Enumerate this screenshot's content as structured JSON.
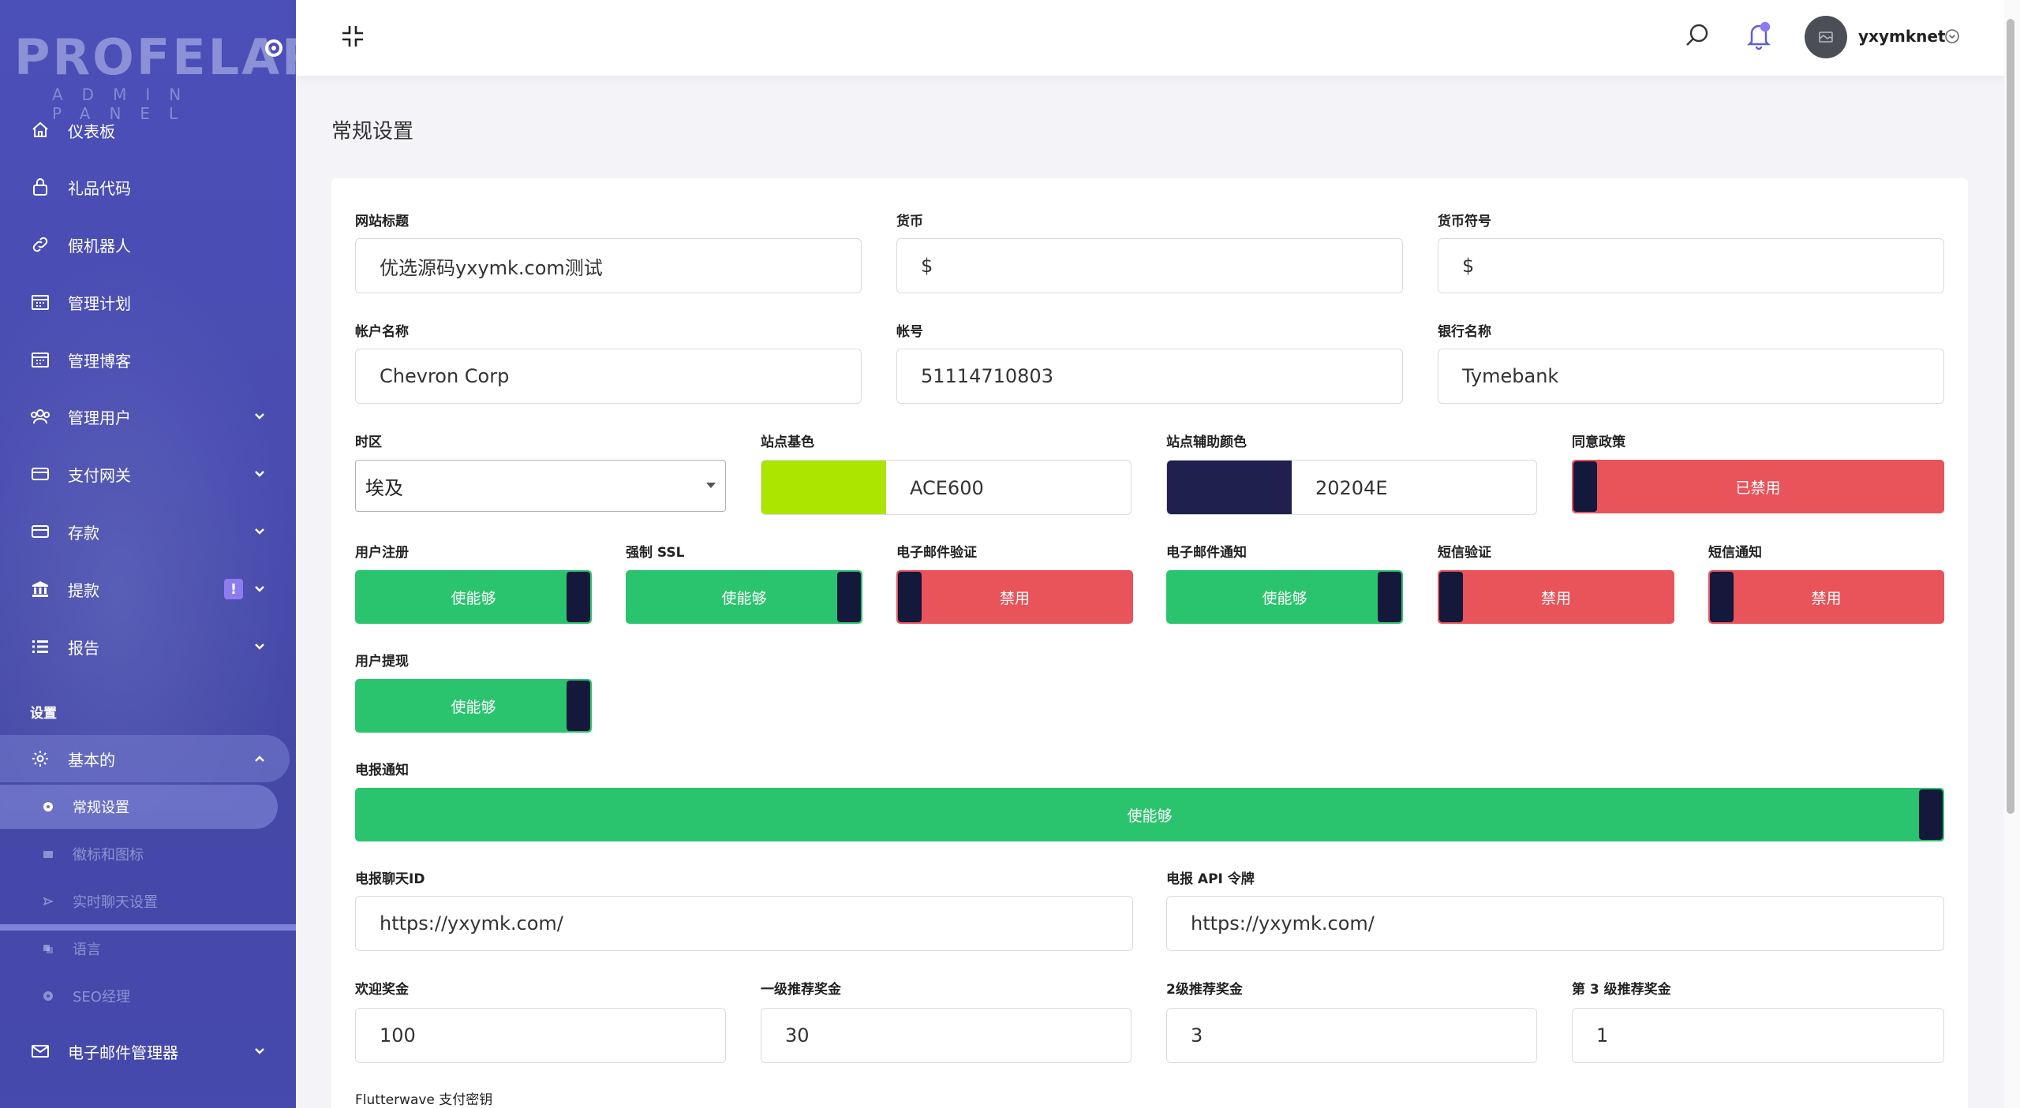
{
  "sidebar": {
    "logo_main": "PROFELAR",
    "logo_sub": "ADMIN PANEL",
    "items": [
      {
        "label": "仪表板",
        "icon": "home-icon"
      },
      {
        "label": "礼品代码",
        "icon": "lock-icon"
      },
      {
        "label": "假机器人",
        "icon": "link-icon"
      },
      {
        "label": "管理计划",
        "icon": "calendar-icon"
      },
      {
        "label": "管理博客",
        "icon": "calendar-icon"
      },
      {
        "label": "管理用户",
        "icon": "users-icon"
      },
      {
        "label": "支付网关",
        "icon": "card-icon"
      },
      {
        "label": "存款",
        "icon": "card-icon"
      },
      {
        "label": "提款",
        "icon": "bank-icon",
        "badge": "!"
      },
      {
        "label": "报告",
        "icon": "list-icon"
      }
    ],
    "section_label": "设置",
    "settings_parent": "基本的",
    "settings_children": [
      {
        "label": "常规设置",
        "active": true
      },
      {
        "label": "徽标和图标",
        "active": false
      },
      {
        "label": "实时聊天设置",
        "active": false
      },
      {
        "label": "语言",
        "active": false
      },
      {
        "label": "SEO经理",
        "active": false
      }
    ],
    "email_manager": "电子邮件管理器"
  },
  "topbar": {
    "username": "yxymknet"
  },
  "page": {
    "title": "常规设置"
  },
  "form": {
    "site_title": {
      "label": "网站标题",
      "value": "优选源码yxymk.com测试"
    },
    "currency": {
      "label": "货币",
      "value": "$"
    },
    "currency_symbol": {
      "label": "货币符号",
      "value": "$"
    },
    "account_name": {
      "label": "帐户名称",
      "value": "Chevron Corp"
    },
    "account_number": {
      "label": "帐号",
      "value": "51114710803"
    },
    "bank_name": {
      "label": "银行名称",
      "value": "Tymebank"
    },
    "timezone": {
      "label": "时区",
      "value": "埃及"
    },
    "base_color": {
      "label": "站点基色",
      "value": "ACE600",
      "swatch": "#ACE600"
    },
    "secondary_color": {
      "label": "站点辅助颜色",
      "value": "20204E",
      "swatch": "#20204E"
    },
    "agree_policy": {
      "label": "同意政策",
      "state": "已禁用"
    },
    "user_registration": {
      "label": "用户注册",
      "state": "使能够"
    },
    "force_ssl": {
      "label": "强制 SSL",
      "state": "使能够"
    },
    "email_verification": {
      "label": "电子邮件验证",
      "state": "禁用"
    },
    "email_notification": {
      "label": "电子邮件通知",
      "state": "使能够"
    },
    "sms_verification": {
      "label": "短信验证",
      "state": "禁用"
    },
    "sms_notification": {
      "label": "短信通知",
      "state": "禁用"
    },
    "user_withdrawal": {
      "label": "用户提现",
      "state": "使能够"
    },
    "telegram_notification": {
      "label": "电报通知",
      "state": "使能够"
    },
    "telegram_chat_id": {
      "label": "电报聊天ID",
      "value": "https://yxymk.com/"
    },
    "telegram_api_token": {
      "label": "电报 API 令牌",
      "value": "https://yxymk.com/"
    },
    "welcome_bonus": {
      "label": "欢迎奖金",
      "value": "100"
    },
    "ref_level1": {
      "label": "一级推荐奖金",
      "value": "30"
    },
    "ref_level2": {
      "label": "2级推荐奖金",
      "value": "3"
    },
    "ref_level3": {
      "label": "第 3 级推荐奖金",
      "value": "1"
    },
    "flutterwave_secret": {
      "label": "Flutterwave 支付密钥"
    }
  },
  "colors": {
    "sidebar": "#4a4cb0",
    "enabled": "#2bc46e",
    "disabled": "#e9535a",
    "knob": "#14183a"
  }
}
